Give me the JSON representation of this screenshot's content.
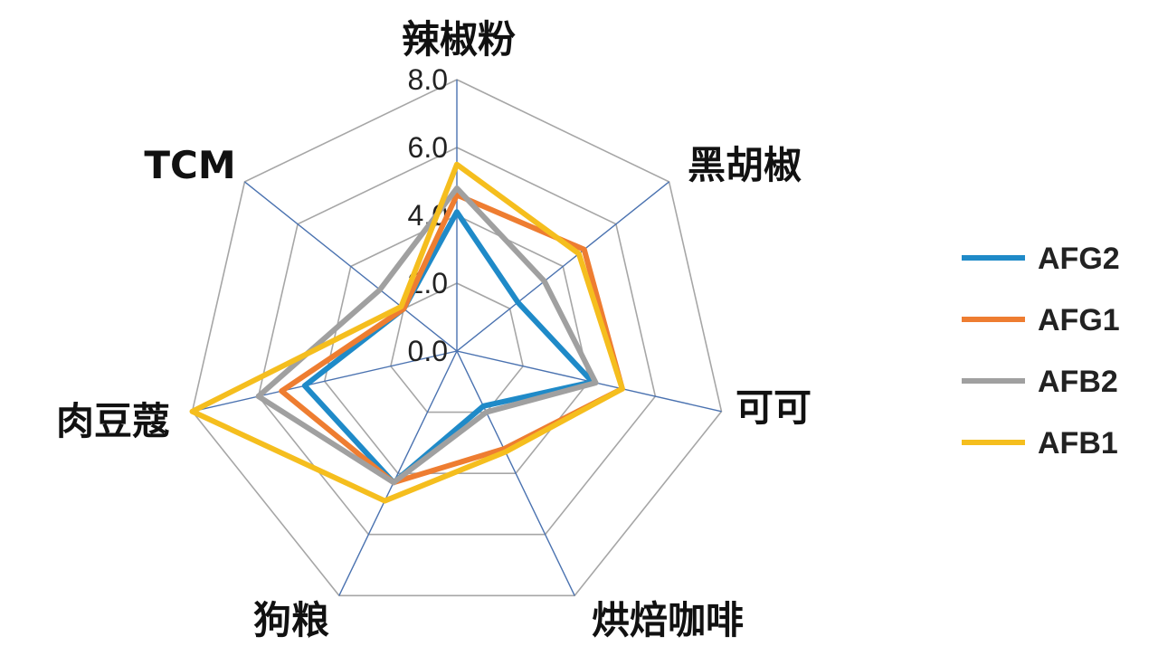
{
  "chart_data": {
    "type": "radar",
    "title": "",
    "categories": [
      "辣椒粉",
      "黑胡椒",
      "可可",
      "烘焙咖啡",
      "狗粮",
      "肉豆蔻",
      "TCM"
    ],
    "rlim": [
      0,
      8
    ],
    "ticks": [
      0,
      2,
      4,
      6,
      8
    ],
    "tick_labels": [
      "0.0",
      "2.0",
      "4.0",
      "6.0",
      "8.0"
    ],
    "grid": true,
    "legend_position": "right",
    "series": [
      {
        "name": "AFG2",
        "color": "#1f8ac8",
        "values": [
          4.1,
          2.3,
          4.1,
          1.8,
          4.3,
          4.6,
          2.0
        ]
      },
      {
        "name": "AFG1",
        "color": "#ee7d31",
        "values": [
          4.6,
          4.8,
          5.0,
          3.2,
          4.3,
          5.3,
          2.0
        ]
      },
      {
        "name": "AFB2",
        "color": "#a0a0a0",
        "values": [
          4.8,
          3.3,
          4.2,
          2.0,
          4.3,
          6.0,
          2.9
        ]
      },
      {
        "name": "AFB1",
        "color": "#f5be1e",
        "values": [
          5.5,
          4.6,
          5.0,
          3.3,
          4.9,
          8.0,
          2.1
        ]
      }
    ]
  }
}
